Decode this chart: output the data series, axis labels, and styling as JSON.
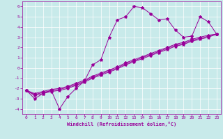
{
  "xlabel": "Windchill (Refroidissement éolien,°C)",
  "bg_color": "#c8eaea",
  "line_color": "#990099",
  "xlim": [
    -0.5,
    23.5
  ],
  "ylim": [
    -4.5,
    6.5
  ],
  "xticks": [
    0,
    1,
    2,
    3,
    4,
    5,
    6,
    7,
    8,
    9,
    10,
    11,
    12,
    13,
    14,
    15,
    16,
    17,
    18,
    19,
    20,
    21,
    22,
    23
  ],
  "yticks": [
    -4,
    -3,
    -2,
    -1,
    0,
    1,
    2,
    3,
    4,
    5,
    6
  ],
  "line_zigzag_x": [
    0,
    1,
    2,
    3,
    4,
    5,
    6,
    7,
    8,
    9,
    10,
    11,
    12,
    13,
    14,
    15,
    16,
    17,
    18,
    19,
    20,
    21,
    22,
    23
  ],
  "line_zigzag_y": [
    -2.2,
    -3.0,
    -2.5,
    -2.2,
    -4.0,
    -2.8,
    -2.0,
    -1.3,
    0.3,
    0.8,
    3.0,
    4.7,
    5.0,
    6.0,
    5.9,
    5.3,
    4.7,
    4.8,
    3.7,
    3.0,
    3.1,
    5.0,
    4.5,
    3.3
  ],
  "line_trend1_x": [
    0,
    1,
    2,
    3,
    4,
    5,
    6,
    7,
    8,
    9,
    10,
    11,
    12,
    13,
    14,
    15,
    16,
    17,
    18,
    19,
    20,
    21,
    22,
    23
  ],
  "line_trend1_y": [
    -2.2,
    -2.5,
    -2.3,
    -2.1,
    -2.0,
    -1.8,
    -1.5,
    -1.2,
    -0.8,
    -0.5,
    -0.2,
    0.1,
    0.5,
    0.8,
    1.1,
    1.4,
    1.7,
    2.0,
    2.3,
    2.5,
    2.8,
    3.0,
    3.2,
    3.3
  ],
  "line_trend2_x": [
    0,
    1,
    2,
    3,
    4,
    5,
    6,
    7,
    8,
    9,
    10,
    11,
    12,
    13,
    14,
    15,
    16,
    17,
    18,
    19,
    20,
    21,
    22,
    23
  ],
  "line_trend2_y": [
    -2.2,
    -2.6,
    -2.4,
    -2.2,
    -2.1,
    -1.9,
    -1.6,
    -1.3,
    -0.9,
    -0.6,
    -0.3,
    0.0,
    0.4,
    0.7,
    1.0,
    1.3,
    1.6,
    1.9,
    2.2,
    2.4,
    2.7,
    2.9,
    3.1,
    3.3
  ],
  "line_trend3_x": [
    0,
    1,
    2,
    3,
    4,
    5,
    6,
    7,
    8,
    9,
    10,
    11,
    12,
    13,
    14,
    15,
    16,
    17,
    18,
    19,
    20,
    21,
    22,
    23
  ],
  "line_trend3_y": [
    -2.2,
    -2.7,
    -2.5,
    -2.3,
    -2.2,
    -2.0,
    -1.7,
    -1.4,
    -1.0,
    -0.7,
    -0.4,
    -0.1,
    0.3,
    0.6,
    0.9,
    1.2,
    1.5,
    1.8,
    2.1,
    2.3,
    2.6,
    2.8,
    3.0,
    3.3
  ]
}
